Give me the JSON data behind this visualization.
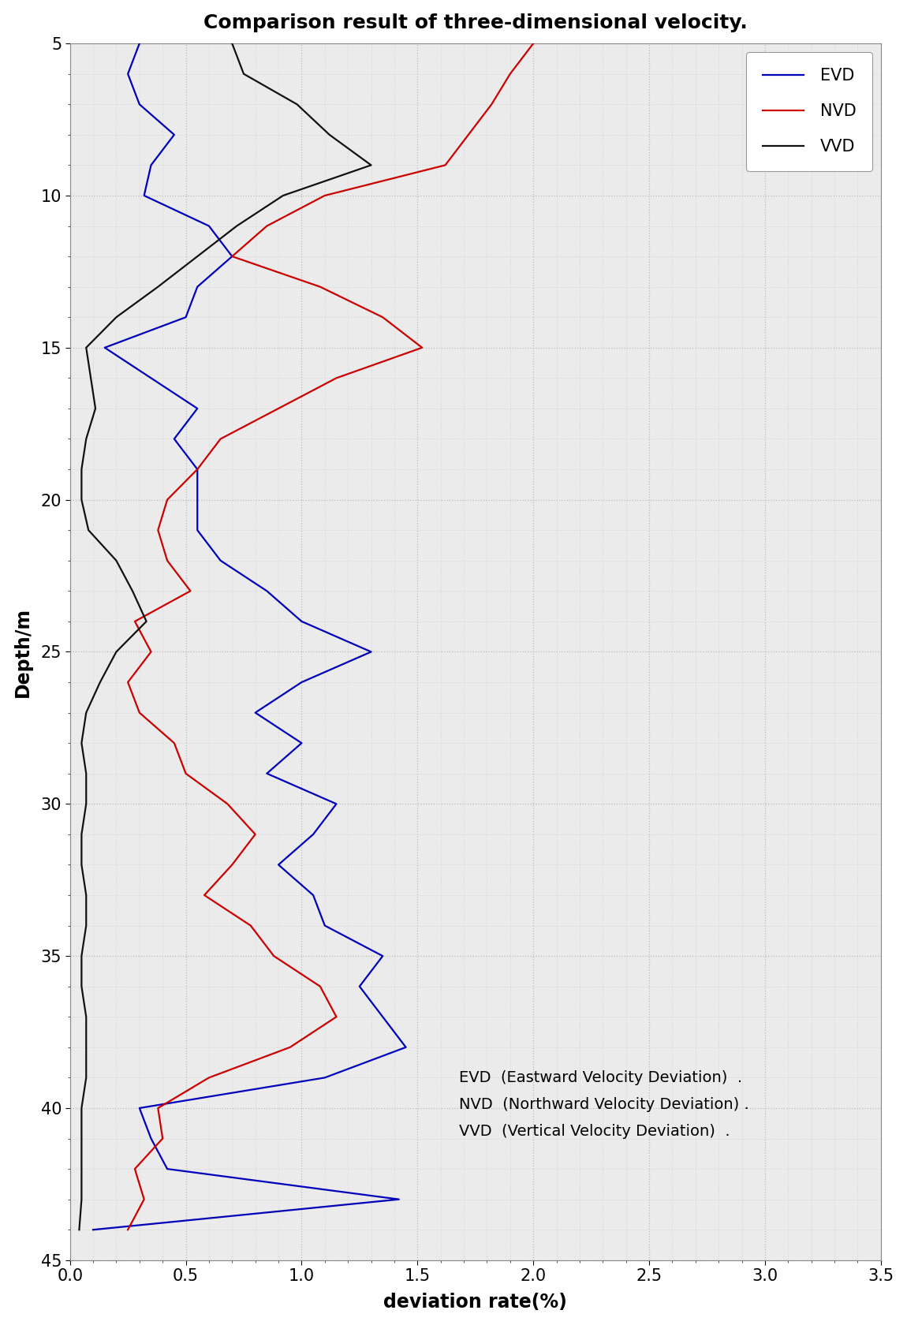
{
  "title": "Comparison result of three-dimensional velocity.",
  "xlabel": "deviation rate(%)",
  "ylabel": "Depth/m",
  "xlim": [
    0,
    3.5
  ],
  "ylim": [
    45,
    5
  ],
  "yticks": [
    5,
    10,
    15,
    20,
    25,
    30,
    35,
    40,
    45
  ],
  "xticks": [
    0,
    0.5,
    1,
    1.5,
    2,
    2.5,
    3,
    3.5
  ],
  "legend_labels": [
    "EVD",
    "NVD",
    "VVD"
  ],
  "legend_colors": [
    "#0000bb",
    "#cc0000",
    "#111111"
  ],
  "annotation_lines": [
    "EVD  (Eastward Velocity Deviation)  .",
    "NVD  (Northward Velocity Deviation) .",
    "VVD  (Vertical Velocity Deviation)  ."
  ],
  "EVD_depth": [
    5,
    6,
    7,
    8,
    9,
    10,
    11,
    12,
    13,
    14,
    15,
    16,
    17,
    18,
    19,
    20,
    21,
    22,
    23,
    24,
    25,
    26,
    27,
    28,
    29,
    30,
    31,
    32,
    33,
    34,
    35,
    36,
    37,
    38,
    39,
    40,
    41,
    42,
    43,
    44
  ],
  "EVD_val": [
    0.3,
    0.25,
    0.3,
    0.45,
    0.35,
    0.32,
    0.6,
    0.7,
    0.55,
    0.5,
    0.15,
    0.35,
    0.55,
    0.45,
    0.55,
    0.55,
    0.55,
    0.65,
    0.85,
    1.0,
    1.3,
    1.0,
    0.8,
    1.0,
    0.85,
    1.15,
    1.05,
    0.9,
    1.05,
    1.1,
    1.35,
    1.25,
    1.35,
    1.45,
    1.1,
    0.3,
    0.35,
    0.42,
    1.42,
    0.1
  ],
  "NVD_depth": [
    5,
    6,
    7,
    8,
    9,
    10,
    11,
    12,
    13,
    14,
    15,
    16,
    17,
    18,
    19,
    20,
    21,
    22,
    23,
    24,
    25,
    26,
    27,
    28,
    29,
    30,
    31,
    32,
    33,
    34,
    35,
    36,
    37,
    38,
    39,
    40,
    41,
    42,
    43,
    44
  ],
  "NVD_val": [
    2.0,
    1.9,
    1.82,
    1.72,
    1.62,
    1.1,
    0.85,
    0.7,
    1.08,
    1.35,
    1.52,
    1.15,
    0.9,
    0.65,
    0.55,
    0.42,
    0.38,
    0.42,
    0.52,
    0.28,
    0.35,
    0.25,
    0.3,
    0.45,
    0.5,
    0.68,
    0.8,
    0.7,
    0.58,
    0.78,
    0.88,
    1.08,
    1.15,
    0.95,
    0.6,
    0.38,
    0.4,
    0.28,
    0.32,
    0.25
  ],
  "VVD_depth": [
    5,
    6,
    7,
    8,
    9,
    10,
    11,
    12,
    13,
    14,
    15,
    16,
    17,
    18,
    19,
    20,
    21,
    22,
    23,
    24,
    25,
    26,
    27,
    28,
    29,
    30,
    31,
    32,
    33,
    34,
    35,
    36,
    37,
    38,
    39,
    40,
    41,
    42,
    43,
    44
  ],
  "VVD_val": [
    0.7,
    0.75,
    0.98,
    1.12,
    1.3,
    0.92,
    0.72,
    0.55,
    0.38,
    0.2,
    0.07,
    0.09,
    0.11,
    0.07,
    0.05,
    0.05,
    0.08,
    0.2,
    0.27,
    0.33,
    0.2,
    0.13,
    0.07,
    0.05,
    0.07,
    0.07,
    0.05,
    0.05,
    0.07,
    0.07,
    0.05,
    0.05,
    0.07,
    0.07,
    0.07,
    0.05,
    0.05,
    0.05,
    0.05,
    0.04
  ],
  "background_color": "#ebebeb",
  "grid_major_color": "#bbbbbb",
  "grid_minor_color": "#cccccc",
  "title_fontsize": 18,
  "label_fontsize": 17,
  "tick_fontsize": 15,
  "legend_fontsize": 15,
  "annotation_fontsize": 14
}
